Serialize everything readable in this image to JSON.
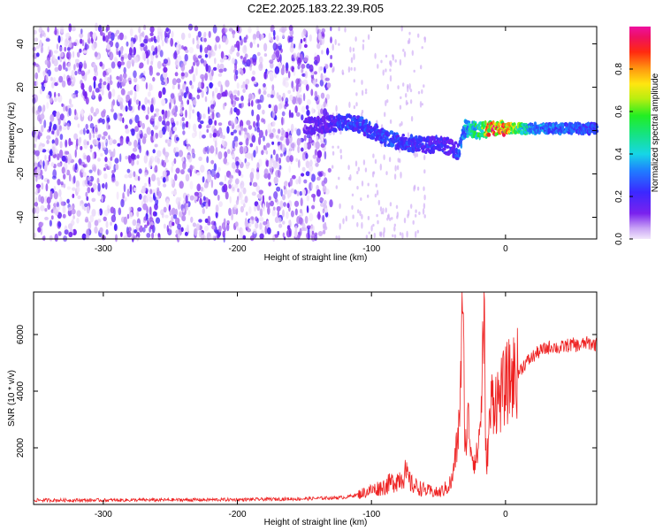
{
  "title": "C2E2.2025.183.22.39.R05",
  "colors": {
    "snr_line": "#ee2222",
    "scatter": "#6a1ee8",
    "axis": "#000000"
  },
  "chart_data": [
    {
      "type": "heatmap",
      "xlabel": "Height of straight line (km)",
      "ylabel": "Frequency (Hz)",
      "xlim": [
        -352,
        68
      ],
      "ylim": [
        -50,
        48
      ],
      "x_ticks": [
        "-300",
        "-200",
        "-100",
        "0"
      ],
      "x_tick_values": [
        -300,
        -200,
        -100,
        0
      ],
      "y_ticks": [
        "-40",
        "-20",
        "0",
        "20",
        "40"
      ],
      "y_tick_values": [
        -40,
        -20,
        0,
        20,
        40
      ],
      "colorbar": {
        "label": "Normalized spectral amplitude",
        "range": [
          0,
          1
        ],
        "ticks": [
          "0.0",
          "0.2",
          "0.4",
          "0.6",
          "0.8"
        ],
        "tick_values": [
          0.0,
          0.2,
          0.4,
          0.6,
          0.8
        ]
      },
      "noise_region_x": [
        -352,
        -130
      ],
      "signal_track": {
        "x": [
          -150,
          -130,
          -120,
          -110,
          -100,
          -90,
          -80,
          -70,
          -60,
          -50,
          -40,
          -35,
          -30,
          -20,
          -10,
          0,
          20,
          40,
          68
        ],
        "frequency": [
          2,
          3,
          4,
          3,
          0,
          -3,
          -5,
          -6,
          -7,
          -6,
          -8,
          -10,
          1,
          0,
          1,
          1,
          1,
          1,
          1
        ],
        "amplitude": [
          0.15,
          0.22,
          0.3,
          0.3,
          0.28,
          0.3,
          0.3,
          0.28,
          0.25,
          0.25,
          0.22,
          0.3,
          0.45,
          0.6,
          1.0,
          0.95,
          0.4,
          0.35,
          0.3
        ]
      }
    },
    {
      "type": "line",
      "xlabel": "Height of straight line (km)",
      "ylabel": "SNR (10 * v/v)",
      "xlim": [
        -352,
        68
      ],
      "ylim": [
        0,
        7500
      ],
      "x_ticks": [
        "-300",
        "-200",
        "-100",
        "0"
      ],
      "x_tick_values": [
        -300,
        -200,
        -100,
        0
      ],
      "y_ticks": [
        "2000",
        "4000",
        "6000"
      ],
      "y_tick_values": [
        2000,
        4000,
        6000
      ],
      "series": [
        {
          "x": [
            -352,
            -300,
            -250,
            -200,
            -150,
            -120,
            -110,
            -100,
            -90,
            -80,
            -75,
            -70,
            -60,
            -50,
            -45,
            -40,
            -35,
            -32,
            -30,
            -28,
            -25,
            -22,
            -20,
            -18,
            -16,
            -15,
            -14,
            -12,
            -10,
            -5,
            0,
            5,
            10,
            15,
            20,
            25,
            30,
            35,
            40,
            45,
            50,
            55,
            60,
            68
          ],
          "y": [
            150,
            150,
            160,
            170,
            200,
            250,
            350,
            500,
            650,
            900,
            1100,
            700,
            500,
            400,
            550,
            800,
            2500,
            6700,
            2000,
            3000,
            1800,
            1500,
            2200,
            3500,
            7500,
            2000,
            1500,
            2800,
            3800,
            3700,
            4200,
            4500,
            4700,
            5000,
            5200,
            5400,
            5500,
            5600,
            5500,
            5600,
            5650,
            5600,
            5700,
            5650
          ]
        }
      ]
    }
  ]
}
